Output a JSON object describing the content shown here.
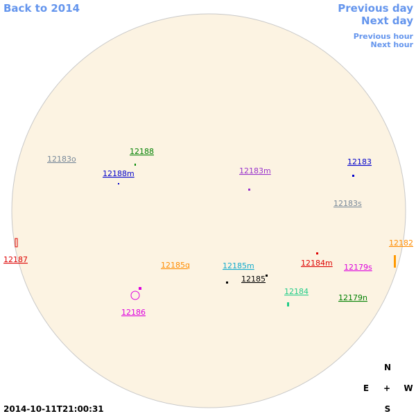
{
  "nav": {
    "back": "Back to 2014",
    "previous_day": "Previous day",
    "next_day": "Next day",
    "previous_hour": "Previous hour",
    "next_hour": "Next hour"
  },
  "regions": [
    {
      "label": "12183o",
      "color": "#778899"
    },
    {
      "label": "12188",
      "color": "#008000"
    },
    {
      "label": "12188m",
      "color": "#0000cc"
    },
    {
      "label": "12183m",
      "color": "#9932cc"
    },
    {
      "label": "12183",
      "color": "#0000cc"
    },
    {
      "label": "12183s",
      "color": "#778899"
    },
    {
      "label": "12182",
      "color": "#ff8c00"
    },
    {
      "label": "12187",
      "color": "#dd0000"
    },
    {
      "label": "12185q",
      "color": "#ff8c00"
    },
    {
      "label": "12185m",
      "color": "#11aacc"
    },
    {
      "label": "12184m",
      "color": "#dd0000"
    },
    {
      "label": "12179s",
      "color": "#dd00dd"
    },
    {
      "label": "12185",
      "color": "#000000"
    },
    {
      "label": "12184",
      "color": "#22cc88"
    },
    {
      "label": "12179n",
      "color": "#008000"
    },
    {
      "label": "12186",
      "color": "#dd00dd"
    }
  ],
  "timestamp": "2014-10-11T21:00:31",
  "compass": {
    "north": "N",
    "east": "E",
    "center": "+",
    "west": "W",
    "south": "S"
  }
}
